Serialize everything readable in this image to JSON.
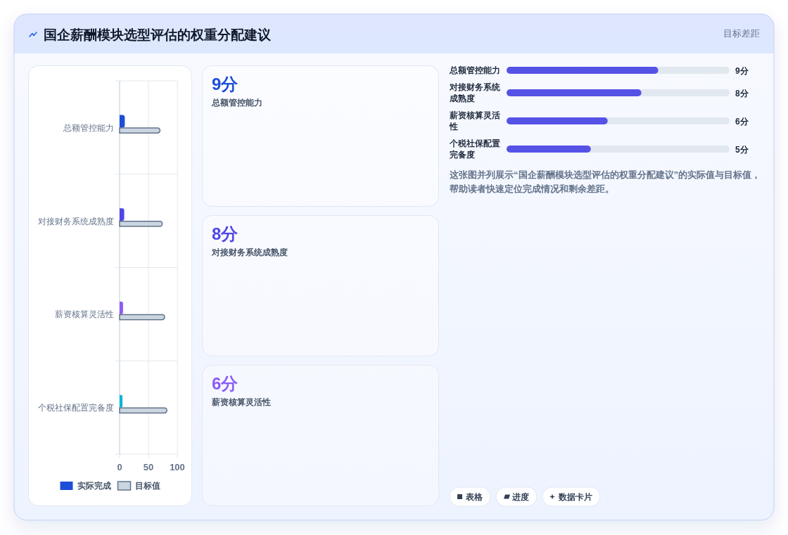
{
  "chart_data": [
    {
      "type": "bar",
      "orientation": "horizontal",
      "title": "国企薪酬模块选型评估的权重分配建议",
      "annotations": [
        "目标差距"
      ],
      "categories": [
        "总额管控能力",
        "对接财务系统成熟度",
        "薪资核算灵活性",
        "个税社保配置完备度"
      ],
      "series": [
        {
          "name": "实际完成",
          "color": "#1d4ed8",
          "colors": [
            "#1d4ed8",
            "#4f46e5",
            "#8b5cf6",
            "#06b6d4"
          ],
          "values": [
            9,
            8,
            6,
            5
          ]
        },
        {
          "name": "目标值",
          "color": "#cbd5e1",
          "values": [
            70,
            74,
            78,
            82
          ]
        }
      ],
      "xlim": [
        0,
        100
      ],
      "xticks": [
        0,
        50,
        100
      ],
      "grid": true,
      "legend": "bottom"
    },
    {
      "type": "other",
      "annotations": [
        "9分",
        "总额管控能力",
        "8分",
        "对接财务系统成熟度",
        "6分",
        "薪资核算灵活性"
      ]
    },
    {
      "type": "bar",
      "orientation": "horizontal",
      "categories": [
        "总额管控能力",
        "对接财务系统成熟度",
        "薪资核算灵活性",
        "个税社保配置完备度"
      ],
      "series": [
        {
          "color": "#5552e6",
          "values": [
            9,
            8,
            6,
            5
          ],
          "value_labels": [
            "9分",
            "8分",
            "6分",
            "5分"
          ]
        }
      ],
      "annotations": [
        "这张图并列展示“国企薪酬模块选型评估的权重分配建议”的实际值与目标值，帮助读者快速定位完成情况和剩余差距。",
        "表格",
        "进度",
        "数据卡片"
      ]
    }
  ]
}
